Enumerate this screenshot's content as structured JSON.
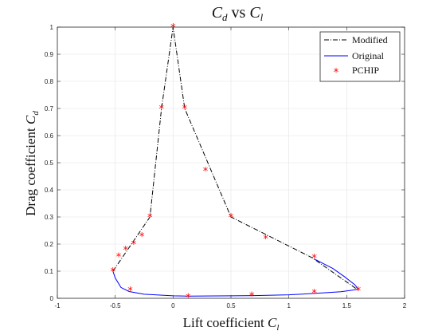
{
  "chart_data": {
    "type": "line",
    "title": {
      "main": "C",
      "sub1": "d",
      "mid": " vs ",
      "main2": "C",
      "sub2": "l"
    },
    "xlabel": {
      "text": "Lift coefficient ",
      "sym": "C",
      "sub": "l"
    },
    "ylabel": {
      "text": "Drag coefficient ",
      "sym": "C",
      "sub": "d"
    },
    "xlim": [
      -1,
      2
    ],
    "ylim": [
      0,
      1
    ],
    "xticks": [
      -1,
      -0.5,
      0,
      0.5,
      1,
      1.5,
      2
    ],
    "xtick_labels": [
      "-1",
      "-0.5",
      "0",
      "0.5",
      "1",
      "1.5",
      "2"
    ],
    "yticks": [
      0,
      0.1,
      0.2,
      0.3,
      0.4,
      0.5,
      0.6,
      0.7,
      0.8,
      0.9,
      1
    ],
    "ytick_labels": [
      "0",
      "0.1",
      "0.2",
      "0.3",
      "0.4",
      "0.5",
      "0.6",
      "0.7",
      "0.8",
      "0.9",
      "1"
    ],
    "grid": true,
    "legend_position": "top-right",
    "series": [
      {
        "name": "Modified",
        "style": "dash-dot",
        "color": "#000000",
        "x": [
          -0.52,
          -0.2,
          -0.1,
          0.0,
          0.1,
          0.5,
          1.2,
          1.6
        ],
        "y": [
          0.1,
          0.3,
          0.7,
          1.0,
          0.7,
          0.3,
          0.15,
          0.03
        ]
      },
      {
        "name": "Original",
        "style": "solid",
        "color": "#0000ff",
        "x": [
          -0.52,
          -0.5,
          -0.45,
          -0.38,
          -0.25,
          0.0,
          0.13,
          0.5,
          0.7,
          1.0,
          1.22,
          1.45,
          1.6,
          1.57,
          1.48,
          1.38,
          1.22
        ],
        "y": [
          0.1,
          0.075,
          0.04,
          0.025,
          0.015,
          0.009,
          0.008,
          0.009,
          0.01,
          0.013,
          0.018,
          0.024,
          0.033,
          0.05,
          0.08,
          0.11,
          0.145
        ]
      },
      {
        "name": "PCHIP",
        "style": "markers",
        "marker": "*",
        "color": "#ff0000",
        "x": [
          0.0,
          -0.1,
          0.1,
          -0.2,
          -0.27,
          -0.34,
          -0.41,
          -0.47,
          -0.52,
          -0.37,
          0.28,
          0.5,
          0.8,
          1.22,
          1.6,
          1.22,
          0.68,
          0.13
        ],
        "y": [
          1.0,
          0.7,
          0.7,
          0.3,
          0.23,
          0.2,
          0.18,
          0.155,
          0.1,
          0.03,
          0.47,
          0.3,
          0.22,
          0.15,
          0.03,
          0.02,
          0.01,
          0.005
        ]
      }
    ]
  }
}
